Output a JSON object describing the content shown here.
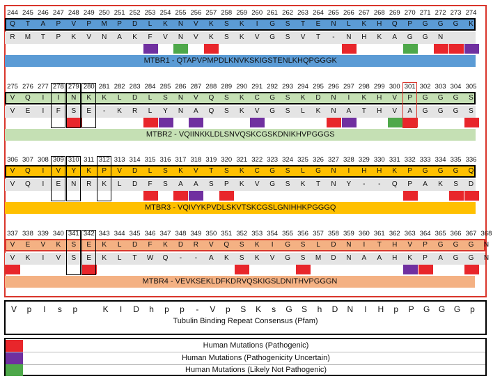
{
  "colors": {
    "pathogenic": "#e8262b",
    "uncertain": "#7030a0",
    "not_pathogenic": "#4ea84a",
    "mtbr1": "#5b9bd5",
    "mtbr2": "#c5e0b4",
    "mtbr3": "#ffc000",
    "mtbr4": "#f4b183",
    "frame_red": "#d9352b"
  },
  "rows": [
    {
      "numbers": [
        "244",
        "245",
        "246",
        "247",
        "248",
        "249",
        "250",
        "251",
        "252",
        "253",
        "254",
        "255",
        "256",
        "257",
        "258",
        "259",
        "260",
        "261",
        "262",
        "263",
        "264",
        "265",
        "266",
        "267",
        "268",
        "269",
        "270",
        "271",
        "272",
        "273",
        "274"
      ],
      "sequence": [
        "Q",
        "T",
        "A",
        "P",
        "V",
        "P",
        "M",
        "P",
        "D",
        "L",
        "K",
        "N",
        "V",
        "K",
        "S",
        "K",
        "I",
        "G",
        "S",
        "T",
        "E",
        "N",
        "L",
        "K",
        "H",
        "Q",
        "P",
        "G",
        "G",
        "G",
        "K"
      ],
      "variants": [
        "R",
        "M",
        "T",
        "P",
        "K",
        "V",
        "N",
        "A",
        "K",
        "F",
        "V",
        "N",
        "V",
        "K",
        "S",
        "K",
        "V",
        "G",
        "S",
        "V",
        "T",
        "-",
        "N",
        "H",
        "K",
        "A",
        "G",
        "G",
        "N",
        "",
        ""
      ],
      "mutations": [
        "",
        "",
        "",
        "",
        "",
        "",
        "",
        "",
        "",
        "U",
        "",
        "B",
        "",
        "P",
        "",
        "",
        "",
        "",
        "",
        "",
        "",
        "",
        "P",
        "",
        "",
        "",
        "B",
        "",
        "P",
        "P",
        "U"
      ],
      "banner": "MTBR1 - QTAPVPMPDLKNVKSKIGSTENLKHQPGGGK",
      "band_color": "#5b9bd5",
      "banner_color": "#5b9bd5",
      "column_boxes": [],
      "red_box": -1
    },
    {
      "numbers": [
        "275",
        "276",
        "277",
        "278",
        "279",
        "280",
        "281",
        "282",
        "283",
        "284",
        "285",
        "286",
        "287",
        "288",
        "289",
        "290",
        "291",
        "292",
        "293",
        "294",
        "295",
        "296",
        "297",
        "298",
        "299",
        "300",
        "301",
        "302",
        "303",
        "304",
        "305"
      ],
      "sequence": [
        "V",
        "Q",
        "I",
        "I",
        "N",
        "K",
        "K",
        "L",
        "D",
        "L",
        "S",
        "N",
        "V",
        "Q",
        "S",
        "K",
        "C",
        "G",
        "S",
        "K",
        "D",
        "N",
        "I",
        "K",
        "H",
        "V",
        "P",
        "G",
        "G",
        "G",
        "S"
      ],
      "variants": [
        "V",
        "E",
        "I",
        "F",
        "S",
        "E",
        "-",
        "K",
        "R",
        "L",
        "Y",
        "N",
        "A",
        "Q",
        "S",
        "K",
        "V",
        "G",
        "S",
        "L",
        "K",
        "N",
        "A",
        "T",
        "H",
        "V",
        "A",
        "G",
        "G",
        "G",
        "S"
      ],
      "mutations": [
        "",
        "",
        "",
        "",
        "P",
        "",
        "",
        "",
        "",
        "P",
        "U",
        "",
        "U",
        "",
        "",
        "",
        "U",
        "",
        "",
        "",
        "",
        "P",
        "U",
        "",
        "",
        "B",
        "P",
        "",
        "",
        "",
        "P"
      ],
      "banner": "MTBR2 - VQIINKKLDLSNVQSKCGSKDNIKHVPGGGS",
      "band_color": "#c5e0b4",
      "banner_color": "#c5e0b4",
      "column_boxes": [
        3,
        4,
        5
      ],
      "red_box": 26
    },
    {
      "numbers": [
        "306",
        "307",
        "308",
        "309",
        "310",
        "311",
        "312",
        "313",
        "314",
        "315",
        "316",
        "317",
        "318",
        "319",
        "320",
        "321",
        "322",
        "323",
        "324",
        "325",
        "326",
        "327",
        "328",
        "329",
        "330",
        "331",
        "332",
        "333",
        "334",
        "335",
        "336"
      ],
      "sequence": [
        "V",
        "Q",
        "I",
        "V",
        "Y",
        "K",
        "P",
        "V",
        "D",
        "L",
        "S",
        "K",
        "V",
        "T",
        "S",
        "K",
        "C",
        "G",
        "S",
        "L",
        "G",
        "N",
        "I",
        "H",
        "H",
        "K",
        "P",
        "G",
        "G",
        "G",
        "Q"
      ],
      "variants": [
        "V",
        "Q",
        "I",
        "E",
        "N",
        "R",
        "K",
        "L",
        "D",
        "F",
        "S",
        "A",
        "A",
        "S",
        "P",
        "K",
        "V",
        "G",
        "S",
        "K",
        "T",
        "N",
        "Y",
        "-",
        "-",
        "Q",
        "P",
        "A",
        "K",
        "S",
        "D"
      ],
      "mutations": [
        "",
        "",
        "",
        "",
        "",
        "",
        "",
        "",
        "",
        "P",
        "",
        "P",
        "U",
        "",
        "P",
        "",
        "",
        "",
        "",
        "",
        "",
        "",
        "",
        "",
        "",
        "",
        "P",
        "",
        "",
        "P",
        "P"
      ],
      "banner": "MTBR3 - VQIVYKPVDLSKVTSKCGSLGNIHHKPGGGQ",
      "band_color": "#ffc000",
      "banner_color": "#ffc000",
      "column_boxes": [
        3,
        4,
        6
      ],
      "red_box": -1
    },
    {
      "numbers": [
        "337",
        "338",
        "339",
        "340",
        "341",
        "342",
        "343",
        "344",
        "345",
        "346",
        "347",
        "348",
        "349",
        "350",
        "351",
        "352",
        "353",
        "354",
        "355",
        "356",
        "357",
        "358",
        "359",
        "360",
        "361",
        "362",
        "363",
        "364",
        "365",
        "366",
        "367",
        "368"
      ],
      "sequence": [
        "V",
        "E",
        "V",
        "K",
        "S",
        "E",
        "K",
        "L",
        "D",
        "F",
        "K",
        "D",
        "R",
        "V",
        "Q",
        "S",
        "K",
        "I",
        "G",
        "S",
        "L",
        "D",
        "N",
        "I",
        "T",
        "H",
        "V",
        "P",
        "G",
        "G",
        "G",
        "N"
      ],
      "variants": [
        "V",
        "K",
        "I",
        "V",
        "S",
        "E",
        "K",
        "L",
        "T",
        "W",
        "Q",
        "-",
        "-",
        "A",
        "K",
        "S",
        "K",
        "V",
        "G",
        "S",
        "M",
        "D",
        "N",
        "A",
        "A",
        "H",
        "K",
        "P",
        "A",
        "G",
        "G",
        "N"
      ],
      "mutations": [
        "P",
        "",
        "",
        "",
        "",
        "P",
        "",
        "",
        "",
        "",
        "",
        "",
        "",
        "",
        "",
        "P",
        "",
        "",
        "",
        "P",
        "",
        "",
        "",
        "",
        "",
        "",
        "U",
        "P",
        "",
        "",
        "P",
        ""
      ],
      "banner": "MTBR4 - VEVKSEKLDFKDRVQSKIGSLDNITHVPGGGN",
      "band_color": "#f4b183",
      "banner_color": "#f4b183",
      "column_boxes": [
        4,
        5
      ],
      "red_box": -1
    }
  ],
  "consensus": {
    "letters": [
      "V",
      "p",
      "l",
      "s",
      "p",
      "",
      "K",
      "l",
      "D",
      "h",
      "p",
      "p",
      "-",
      "V",
      "p",
      "S",
      "K",
      "s",
      "G",
      "S",
      "h",
      "D",
      "N",
      "l",
      "H",
      "p",
      "P",
      "G",
      "G",
      "G",
      "p"
    ],
    "label": "Tubulin Binding Repeat Consensus (Pfam)"
  },
  "legend": [
    {
      "label": "Human Mutations (Pathogenic)",
      "color": "#e8262b"
    },
    {
      "label": "Human Mutations (Pathogenicity Uncertain)",
      "color": "#7030a0"
    },
    {
      "label": "Human Mutations (Likely Not Pathogenic)",
      "color": "#4ea84a"
    }
  ]
}
